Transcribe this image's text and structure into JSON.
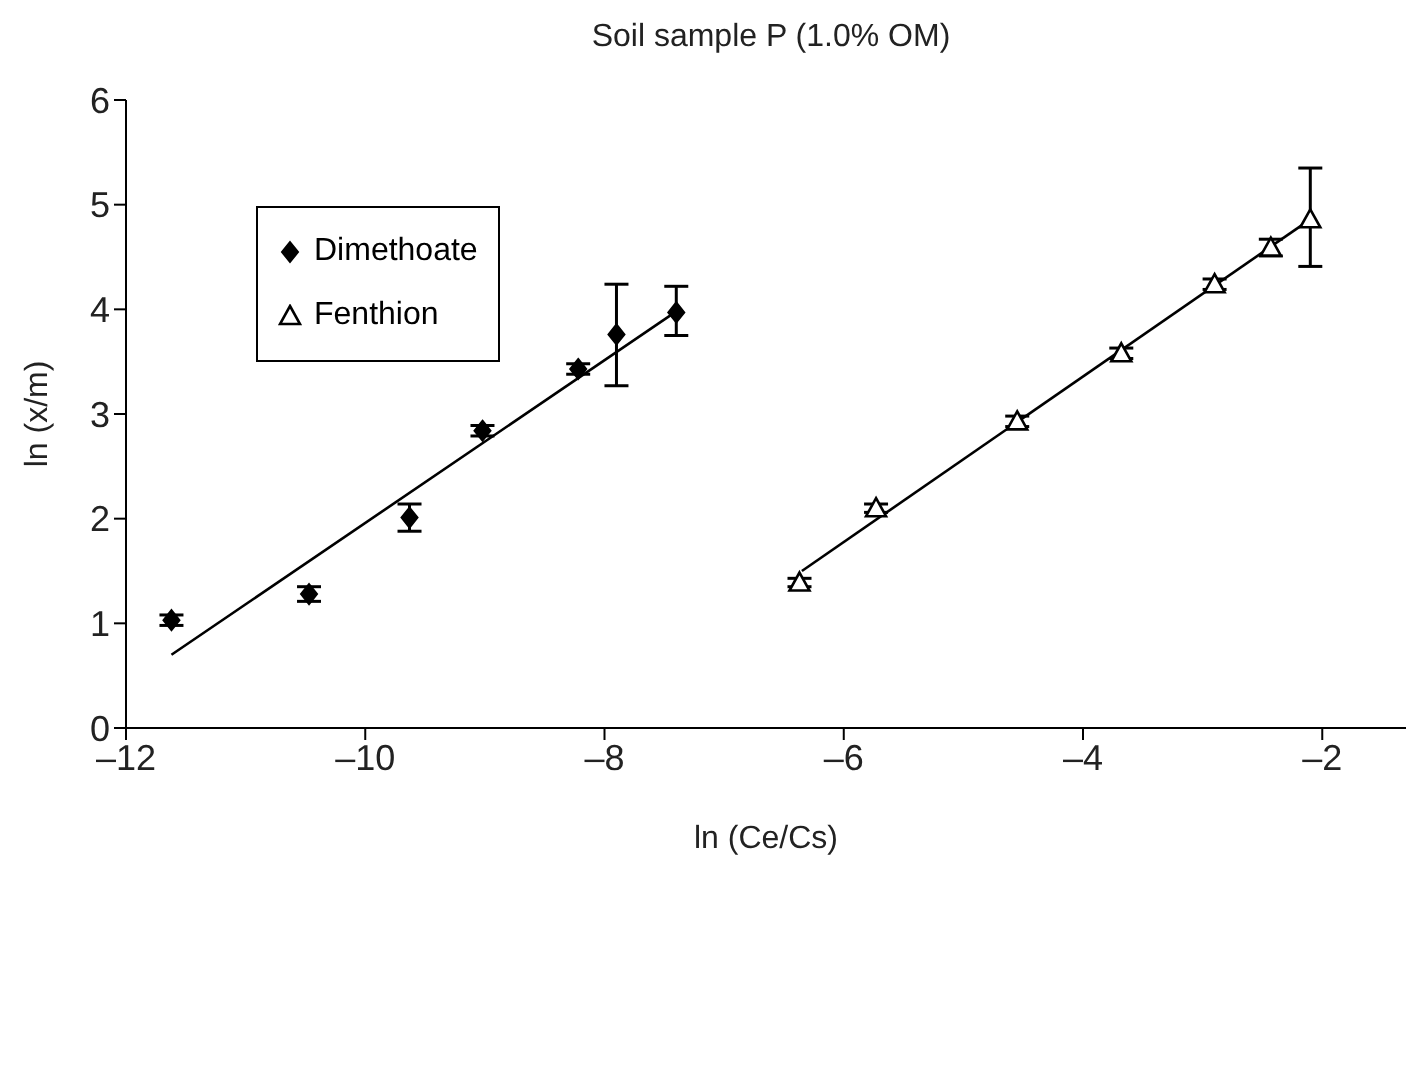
{
  "chart_data": {
    "type": "scatter",
    "title": "Soil sample P (1.0% OM)",
    "xlabel": "ln (Ce/Cs)",
    "ylabel": "ln (x/m)",
    "xlim": [
      -12,
      -1.3
    ],
    "xticks": [
      {
        "value": -12,
        "label": "–12"
      },
      {
        "value": -10,
        "label": "–10"
      },
      {
        "value": -8,
        "label": "–8"
      },
      {
        "value": -6,
        "label": "–6"
      },
      {
        "value": -4,
        "label": "–4"
      },
      {
        "value": -2,
        "label": "–2"
      }
    ],
    "ylim": [
      0,
      6
    ],
    "yticks": [
      0,
      1,
      2,
      3,
      4,
      5,
      6
    ],
    "grid": false,
    "legend": "top left",
    "series": [
      {
        "name": "Dimethoate",
        "marker": "diamond",
        "color": "#000000",
        "x": [
          -11.62,
          -10.47,
          -9.63,
          -9.02,
          -8.22,
          -7.9,
          -7.4
        ],
        "values": [
          1.03,
          1.28,
          2.01,
          2.84,
          3.43,
          3.76,
          3.97
        ],
        "errors": [
          0.05,
          0.07,
          0.13,
          0.05,
          0.05,
          [
            3.27,
            4.24
          ],
          [
            3.75,
            4.22
          ]
        ]
      },
      {
        "name": "Fenthion",
        "marker": "triangle",
        "color": "#000000",
        "x": [
          -6.37,
          -5.73,
          -4.55,
          -3.68,
          -2.9,
          -2.43,
          -2.1
        ],
        "values": [
          1.39,
          2.1,
          2.93,
          3.58,
          4.24,
          4.59,
          4.86
        ],
        "errors": [
          0.04,
          0.04,
          0.05,
          0.05,
          0.05,
          0.08,
          [
            4.41,
            5.35
          ]
        ]
      },
      {
        "type": "line",
        "marker": "none",
        "color": "#000000",
        "x": [
          -11.62,
          -7.4
        ],
        "values": [
          0.7,
          3.98
        ]
      },
      {
        "type": "line",
        "marker": "none",
        "color": "#000000",
        "x": [
          -6.35,
          -2.1
        ],
        "values": [
          1.5,
          4.86
        ]
      }
    ]
  }
}
